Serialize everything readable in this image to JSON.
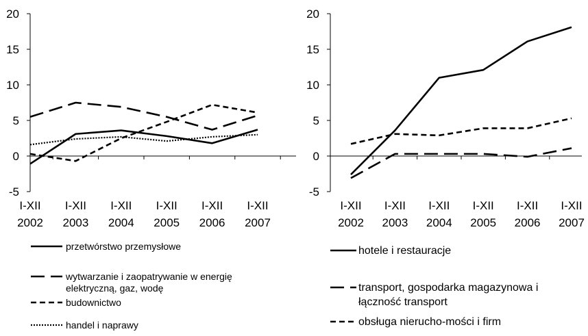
{
  "chart_data": [
    {
      "type": "line",
      "title": "",
      "xlabel": "",
      "ylabel": "",
      "categories": [
        [
          "I-XII",
          "2002"
        ],
        [
          "I-XII",
          "2003"
        ],
        [
          "I-XII",
          "2004"
        ],
        [
          "I-XII",
          "2005"
        ],
        [
          "I-XII",
          "2006"
        ],
        [
          "I-XII",
          "2007"
        ]
      ],
      "ylim": [
        -5,
        20
      ],
      "yticks": [
        "-5",
        "0",
        "5",
        "10",
        "15",
        "20"
      ],
      "grid": false,
      "legend_position": "bottom",
      "series": [
        {
          "name": "przetwórstwo przemysłowe",
          "values": [
            -1.1,
            3.1,
            3.6,
            2.8,
            1.8,
            3.7
          ],
          "style": "solid",
          "legend_lines": [
            "przetwórstwo przemysłowe"
          ]
        },
        {
          "name": "wytwarzanie i zaopatrywanie w energię elektryczną, gaz, wodę",
          "values": [
            5.5,
            7.5,
            6.9,
            5.5,
            3.7,
            5.7
          ],
          "style": "long-dash",
          "legend_lines": [
            "wytwarzanie i zaopatrywanie w energię",
            "elektryczną, gaz, wodę"
          ]
        },
        {
          "name": "budownictwo",
          "values": [
            0.3,
            -0.7,
            2.5,
            4.8,
            7.2,
            6.1
          ],
          "style": "short-dash",
          "legend_lines": [
            "budownictwo"
          ]
        },
        {
          "name": "handel i naprawy",
          "values": [
            1.6,
            2.4,
            2.7,
            2.1,
            2.7,
            3.0
          ],
          "style": "dotted",
          "legend_lines": [
            "handel i naprawy"
          ]
        }
      ]
    },
    {
      "type": "line",
      "title": "",
      "xlabel": "",
      "ylabel": "",
      "categories": [
        [
          "I-XII",
          "2002"
        ],
        [
          "I-XII",
          "2003"
        ],
        [
          "I-XII",
          "2004"
        ],
        [
          "I-XII",
          "2005"
        ],
        [
          "I-XII",
          "2006"
        ],
        [
          "I-XII",
          "2007"
        ]
      ],
      "ylim": [
        -5,
        20
      ],
      "yticks": [
        "-5",
        "0",
        "5",
        "10",
        "15",
        "20"
      ],
      "grid": false,
      "legend_position": "bottom",
      "series": [
        {
          "name": "hotele i restauracje",
          "values": [
            -2.6,
            3.6,
            11.0,
            12.1,
            16.1,
            18.1
          ],
          "style": "solid",
          "legend_lines": [
            "hotele i restauracje"
          ]
        },
        {
          "name": "transport, gospodarka magazynowa i łączność transport",
          "values": [
            -3.1,
            0.3,
            0.3,
            0.3,
            -0.1,
            1.1
          ],
          "style": "long-dash",
          "legend_lines": [
            "transport, gospodarka magazynowa i",
            "łączność transport"
          ]
        },
        {
          "name": "obsługa nierucho-mości i firm",
          "values": [
            1.7,
            3.1,
            2.9,
            3.9,
            3.9,
            5.3
          ],
          "style": "short-dash",
          "legend_lines": [
            "obsługa nierucho-mości i firm"
          ]
        }
      ]
    }
  ]
}
